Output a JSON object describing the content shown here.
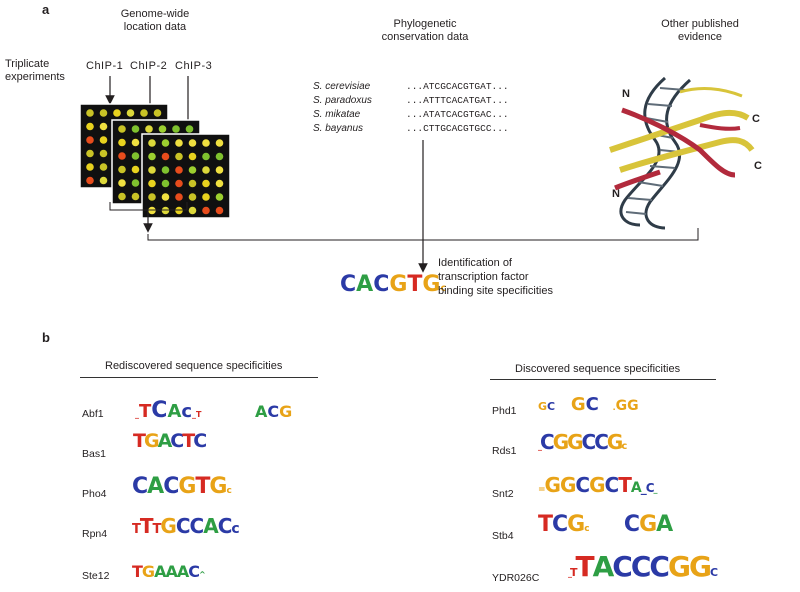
{
  "panel_a": {
    "label": "a",
    "genome_header_line1": "Genome-wide",
    "genome_header_line2": "location data",
    "triplicate_line1": "Triplicate",
    "triplicate_line2": "experiments",
    "chips": [
      "ChIP-1",
      "ChIP-2",
      "ChIP-3"
    ],
    "phylo_header_line1": "Phylogenetic",
    "phylo_header_line2": "conservation data",
    "species": [
      {
        "name": "S. cerevisiae",
        "seq": "...ATCGCACGTGAT..."
      },
      {
        "name": "S. paradoxus",
        "seq": "...ATTTCACATGAT..."
      },
      {
        "name": "S. mikatae",
        "seq": "...ATATCACGTGAC..."
      },
      {
        "name": "S. bayanus",
        "seq": "...CTTGCACGTGCC..."
      }
    ],
    "evidence_header_line1": "Other published",
    "evidence_header_line2": "evidence",
    "terminus_labels": [
      "N",
      "N",
      "C",
      "C"
    ],
    "identification_line1": "Identification of",
    "identification_line2": "transcription factor",
    "identification_line3": "binding site specificities",
    "consensus_motif": "CACGTGc"
  },
  "panel_b": {
    "label": "b",
    "rediscovered_title": "Rediscovered sequence specificities",
    "discovered_title": "Discovered sequence specificities",
    "rediscovered": [
      {
        "gene": "Abf1",
        "motif": "TCAc",
        "motif2": "ACG"
      },
      {
        "gene": "Bas1",
        "motif": "TGACTC"
      },
      {
        "gene": "Pho4",
        "motif": "CACGTGc"
      },
      {
        "gene": "Rpn4",
        "motif": "TTTGCCACC"
      },
      {
        "gene": "Ste12",
        "motif": "TGAAAC"
      }
    ],
    "discovered": [
      {
        "gene": "Phd1",
        "motif": "GC GC GG"
      },
      {
        "gene": "Rds1",
        "motif": "CGGCCG"
      },
      {
        "gene": "Snt2",
        "motif": "GGCGCTAC"
      },
      {
        "gene": "Stb4",
        "motif": "TCG CGA"
      },
      {
        "gene": "YDR026C",
        "motif": "TTACCCGGC"
      }
    ]
  },
  "colors": {
    "A": "#2e9e44",
    "C": "#2b3aa6",
    "G": "#e8a317",
    "T": "#d62a22"
  }
}
